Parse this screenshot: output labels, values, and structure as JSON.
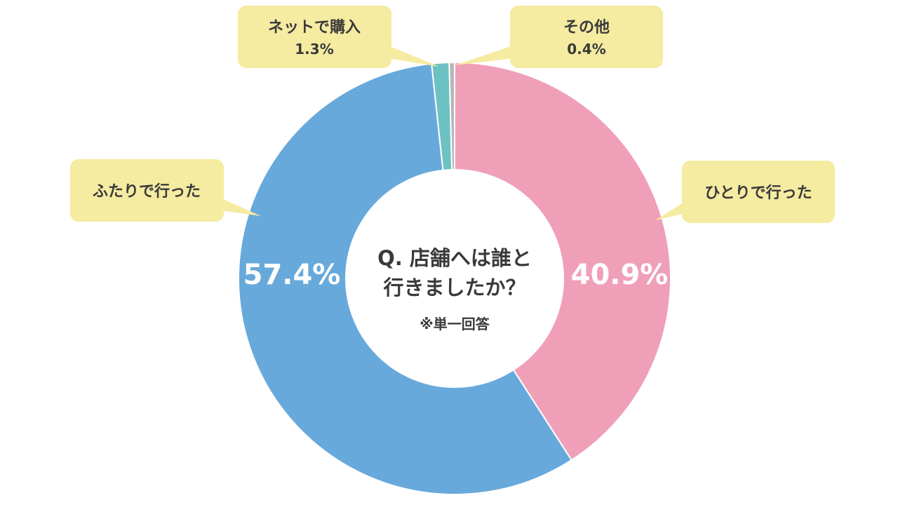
{
  "chart_data": {
    "type": "pie",
    "title_lines": [
      "Q. 店舗へは誰と",
      "行きましたか？"
    ],
    "note": "※単一回答",
    "unit": "%",
    "slices": [
      {
        "label": "ひとりで行った",
        "value": 40.9,
        "value_label": "40.9%",
        "color": "#efa0b8"
      },
      {
        "label": "ふたりで行った",
        "value": 57.4,
        "value_label": "57.4%",
        "color": "#68a9db"
      },
      {
        "label": "ネットで購入",
        "value": 1.3,
        "value_label": "1.3%",
        "color": "#6cc1c3"
      },
      {
        "label": "その他",
        "value": 0.4,
        "value_label": "0.4%",
        "color": "#b7b7b7"
      }
    ]
  }
}
